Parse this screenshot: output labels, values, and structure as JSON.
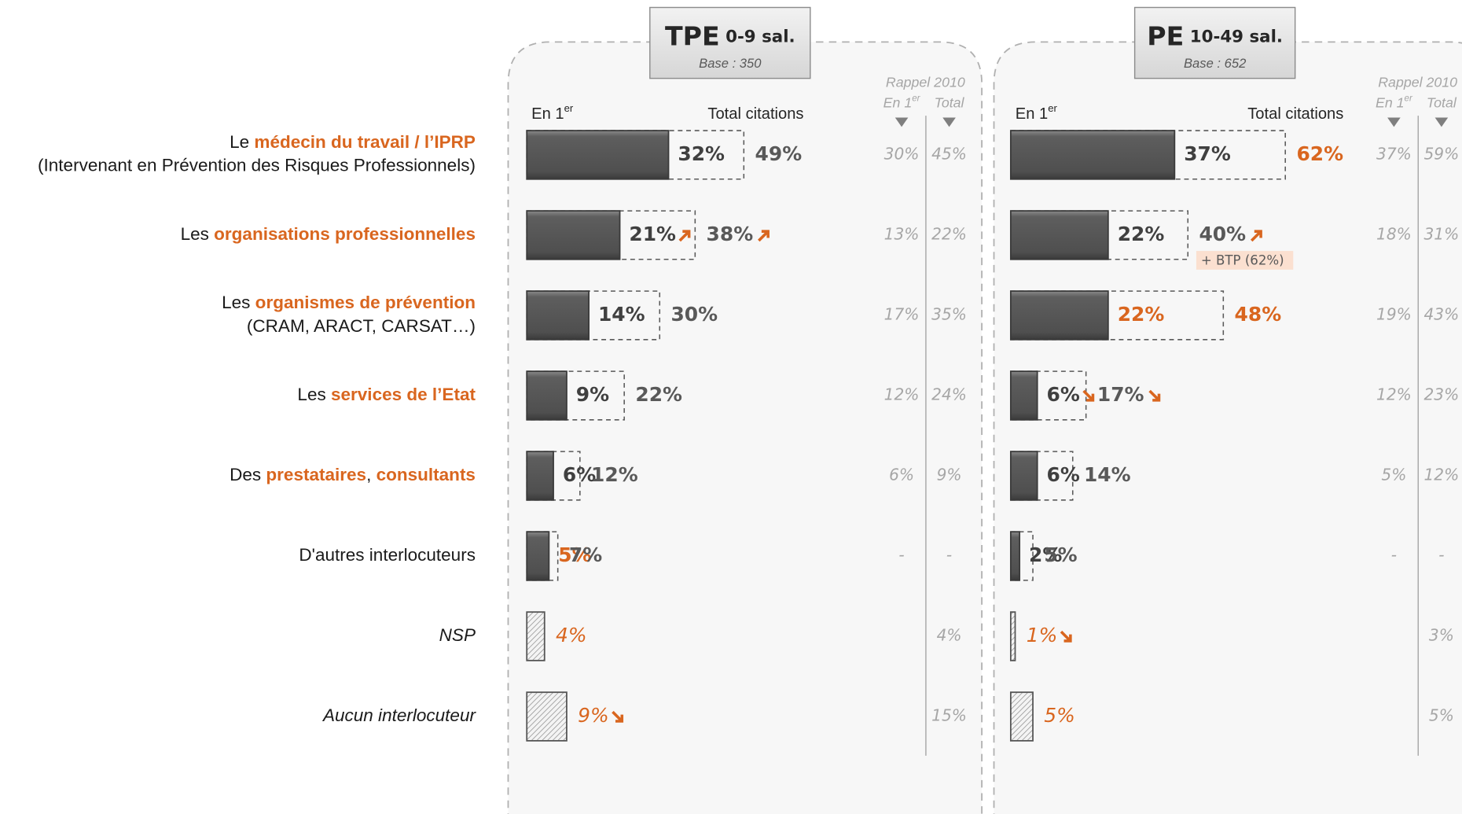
{
  "row_labels": [
    {
      "lines": [
        [
          {
            "text": "Le "
          },
          {
            "text": "médecin du travail / l’IPRP",
            "highlight": true
          }
        ],
        [
          {
            "text": "(Intervenant en Prévention des Risques Professionnels)"
          }
        ]
      ]
    },
    {
      "lines": [
        [
          {
            "text": "Les "
          },
          {
            "text": "organisations professionnelles",
            "highlight": true
          }
        ]
      ]
    },
    {
      "lines": [
        [
          {
            "text": "Les "
          },
          {
            "text": "organismes de prévention",
            "highlight": true
          }
        ],
        [
          {
            "text": "(CRAM, ARACT, CARSAT…)"
          }
        ]
      ]
    },
    {
      "lines": [
        [
          {
            "text": "Les "
          },
          {
            "text": "services de l’Etat",
            "highlight": true
          }
        ]
      ]
    },
    {
      "lines": [
        [
          {
            "text": "Des "
          },
          {
            "text": "prestataires",
            "highlight": true
          },
          {
            "text": ", "
          },
          {
            "text": "consultants",
            "highlight": true
          }
        ]
      ]
    },
    {
      "lines": [
        [
          {
            "text": "D'autres interlocuteurs"
          }
        ]
      ]
    },
    {
      "lines": [
        [
          {
            "text": "NSP"
          }
        ]
      ],
      "italic": true
    },
    {
      "lines": [
        [
          {
            "text": "Aucun interlocuteur"
          }
        ]
      ],
      "italic": true
    }
  ],
  "chart_data": [
    {
      "type": "bar",
      "title": "TPE",
      "subtitle": "0-9 sal.",
      "base": "Base : 350",
      "hatched": [
        false,
        false,
        false,
        false,
        false,
        false,
        true,
        true
      ],
      "series": [
        {
          "label": {
            "text": "En 1",
            "sup": "er"
          },
          "color": "#5a5a5a",
          "values": [
            32,
            21,
            14,
            9,
            6,
            5,
            4,
            9
          ],
          "value_labels": [
            "32%",
            "21%",
            "14%",
            "9%",
            "6%",
            "5%",
            "4%",
            "9%"
          ],
          "highlight": [
            false,
            false,
            false,
            false,
            false,
            true,
            true,
            true
          ],
          "trend": [
            null,
            "up",
            null,
            null,
            null,
            null,
            null,
            "down"
          ]
        },
        {
          "label": {
            "text": "Total citations"
          },
          "style": "dashed",
          "values": [
            49,
            38,
            30,
            22,
            12,
            7,
            null,
            null
          ],
          "value_labels": [
            "49%",
            "38%",
            "30%",
            "22%",
            "12%",
            "7%",
            null,
            null
          ],
          "highlight": [
            false,
            false,
            false,
            false,
            false,
            false,
            false,
            false
          ],
          "trend": [
            null,
            "up",
            null,
            null,
            null,
            null,
            null,
            null
          ],
          "notes": [
            null,
            null,
            null,
            null,
            null,
            null,
            null,
            null
          ]
        }
      ],
      "recall": {
        "title": "Rappel 2010",
        "columns": [
          {
            "text": "En 1",
            "sup": "er"
          },
          {
            "text": "Total"
          }
        ],
        "series": [
          {
            "values": [
              30,
              13,
              17,
              12,
              6,
              null,
              null,
              null
            ],
            "value_labels": [
              "30%",
              "13%",
              "17%",
              "12%",
              "6%",
              "-",
              null,
              null
            ]
          },
          {
            "values": [
              45,
              22,
              35,
              24,
              9,
              null,
              4,
              15
            ],
            "value_labels": [
              "45%",
              "22%",
              "35%",
              "24%",
              "9%",
              "-",
              "4%",
              "15%"
            ]
          }
        ]
      }
    },
    {
      "type": "bar",
      "title": "PE",
      "subtitle": "10-49 sal.",
      "base": "Base : 652",
      "hatched": [
        false,
        false,
        false,
        false,
        false,
        false,
        true,
        true
      ],
      "series": [
        {
          "label": {
            "text": "En 1",
            "sup": "er"
          },
          "color": "#5a5a5a",
          "values": [
            37,
            22,
            22,
            6,
            6,
            2,
            1,
            5
          ],
          "value_labels": [
            "37%",
            "22%",
            "22%",
            "6%",
            "6%",
            "2%",
            "1%",
            "5%"
          ],
          "highlight": [
            false,
            false,
            true,
            false,
            false,
            false,
            true,
            true
          ],
          "trend": [
            null,
            null,
            null,
            "down",
            null,
            null,
            "down",
            null
          ]
        },
        {
          "label": {
            "text": "Total citations"
          },
          "style": "dashed",
          "values": [
            62,
            40,
            48,
            17,
            14,
            5,
            null,
            null
          ],
          "value_labels": [
            "62%",
            "40%",
            "48%",
            "17%",
            "14%",
            "5%",
            null,
            null
          ],
          "highlight": [
            true,
            false,
            true,
            false,
            false,
            false,
            false,
            false
          ],
          "trend": [
            null,
            "up",
            null,
            "down",
            null,
            null,
            null,
            null
          ],
          "notes": [
            null,
            "+ BTP (62%)",
            null,
            null,
            null,
            null,
            null,
            null
          ]
        }
      ],
      "recall": {
        "title": "Rappel 2010",
        "columns": [
          {
            "text": "En 1",
            "sup": "er"
          },
          {
            "text": "Total"
          }
        ],
        "series": [
          {
            "values": [
              37,
              18,
              19,
              12,
              5,
              null,
              null,
              null
            ],
            "value_labels": [
              "37%",
              "18%",
              "19%",
              "12%",
              "5%",
              "-",
              null,
              null
            ]
          },
          {
            "values": [
              59,
              31,
              43,
              23,
              12,
              null,
              3,
              5
            ],
            "value_labels": [
              "59%",
              "31%",
              "43%",
              "23%",
              "12%",
              "-",
              "3%",
              "5%"
            ]
          }
        ]
      }
    }
  ]
}
